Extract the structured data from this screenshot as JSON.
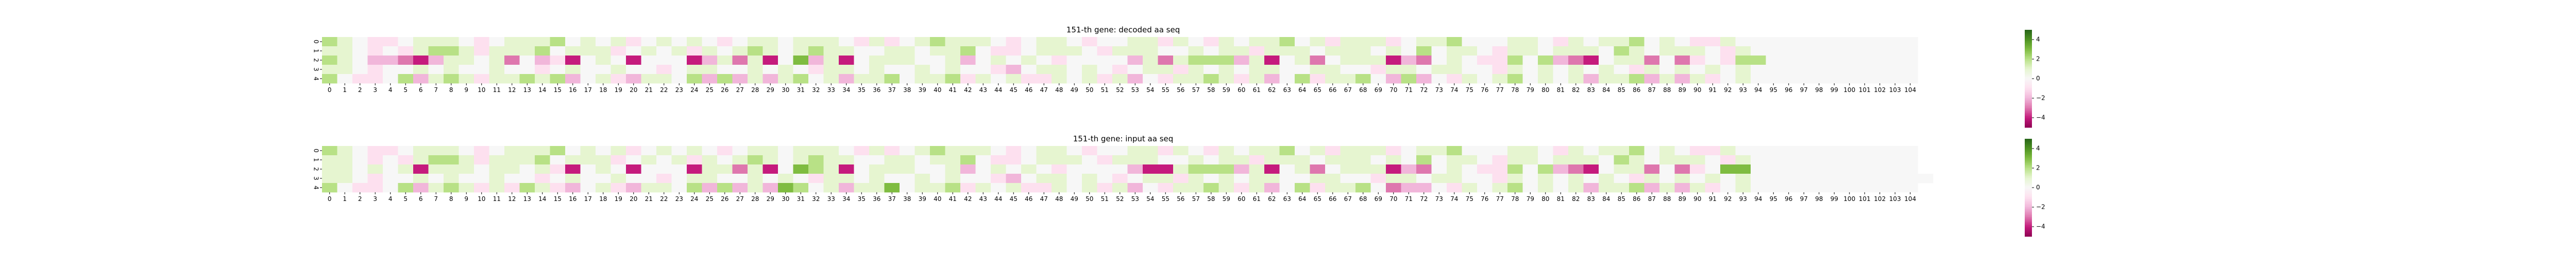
{
  "colormap": {
    "name": "PiYG",
    "min": -5,
    "max": 5,
    "stops": [
      "#8e0152",
      "#c51b7d",
      "#de77ae",
      "#f1b6da",
      "#fde0ef",
      "#f7f7f7",
      "#e6f5d0",
      "#b8e186",
      "#7fbc41",
      "#4d9221",
      "#276419"
    ]
  },
  "chart_data": [
    {
      "type": "heatmap",
      "title": "151-th gene: decoded aa seq",
      "rows": [
        "0",
        "1",
        "2",
        "3",
        "4"
      ],
      "columns": [
        "0",
        "1",
        "2",
        "3",
        "4",
        "5",
        "6",
        "7",
        "8",
        "9",
        "10",
        "11",
        "12",
        "13",
        "14",
        "15",
        "16",
        "17",
        "18",
        "19",
        "20",
        "21",
        "22",
        "23",
        "24",
        "25",
        "26",
        "27",
        "28",
        "29",
        "30",
        "31",
        "32",
        "33",
        "34",
        "35",
        "36",
        "37",
        "38",
        "39",
        "40",
        "41",
        "42",
        "43",
        "44",
        "45",
        "46",
        "47",
        "48",
        "49",
        "50",
        "51",
        "52",
        "53",
        "54",
        "55",
        "56",
        "57",
        "58",
        "59",
        "60",
        "61",
        "62",
        "63",
        "64",
        "65",
        "66",
        "67",
        "68",
        "69",
        "70",
        "71",
        "72",
        "73",
        "74",
        "75",
        "76",
        "77",
        "78",
        "79",
        "80",
        "81",
        "82",
        "83",
        "84",
        "85",
        "86",
        "87",
        "88",
        "89",
        "90",
        "91",
        "92",
        "93",
        "94",
        "95",
        "96",
        "97",
        "98",
        "99",
        "100",
        "101",
        "102",
        "103",
        "104"
      ],
      "colorbar_ticks": [
        4,
        2,
        0,
        -2,
        -4
      ],
      "values": [
        [
          2,
          1,
          0,
          -1,
          -1,
          0,
          1,
          1,
          1,
          0,
          -1,
          0,
          1,
          1,
          1,
          2,
          0,
          1,
          0,
          1,
          -1,
          0,
          1,
          0,
          1,
          0,
          -1,
          0,
          1,
          1,
          0,
          1,
          1,
          1,
          0,
          -1,
          1,
          -1,
          0,
          1,
          2,
          1,
          1,
          1,
          0,
          -1,
          0,
          1,
          1,
          0,
          -1,
          0,
          0,
          1,
          1,
          -1,
          1,
          0,
          -1,
          1,
          0,
          1,
          1,
          2,
          0,
          1,
          -1,
          1,
          1,
          1,
          -1,
          0,
          1,
          1,
          2,
          0,
          0,
          0,
          1,
          1,
          0,
          -1,
          1,
          0,
          1,
          1,
          2,
          0,
          1,
          0,
          -1,
          -1,
          1,
          0,
          0,
          0,
          0,
          0,
          0,
          0,
          0,
          0,
          0,
          0,
          0
        ],
        [
          1,
          1,
          0,
          -1,
          0,
          -1,
          1,
          2,
          2,
          1,
          -1,
          1,
          1,
          1,
          2,
          0,
          1,
          1,
          1,
          -1,
          0,
          1,
          0,
          1,
          -1,
          1,
          0,
          1,
          2,
          1,
          0,
          1,
          2,
          1,
          1,
          0,
          0,
          1,
          1,
          0,
          1,
          1,
          2,
          0,
          -1,
          -1,
          0,
          1,
          1,
          1,
          0,
          -1,
          1,
          1,
          1,
          0,
          0,
          1,
          0,
          1,
          1,
          -1,
          1,
          1,
          1,
          0,
          1,
          1,
          1,
          0,
          1,
          0,
          2,
          0,
          1,
          1,
          0,
          -1,
          1,
          1,
          0,
          1,
          1,
          1,
          0,
          2,
          1,
          0,
          1,
          1,
          1,
          0,
          -1,
          1,
          0,
          0,
          0,
          0,
          0,
          0,
          0,
          0,
          0,
          0,
          0
        ],
        [
          2,
          1,
          0,
          -2,
          -2,
          -3,
          -4,
          -2,
          1,
          1,
          0,
          1,
          -3,
          0,
          -2,
          -1,
          -4,
          0,
          1,
          0,
          -4,
          0,
          0,
          0,
          -4,
          -2,
          1,
          -3,
          1,
          -4,
          0,
          3,
          -2,
          1,
          -4,
          0,
          1,
          1,
          1,
          0,
          0,
          1,
          -2,
          0,
          1,
          0,
          1,
          0,
          -1,
          0,
          0,
          0,
          0,
          -2,
          1,
          -3,
          1,
          2,
          2,
          2,
          -2,
          1,
          -4,
          0,
          1,
          -3,
          0,
          1,
          1,
          1,
          -4,
          -2,
          -3,
          0,
          1,
          0,
          -1,
          -1,
          2,
          0,
          2,
          -2,
          -3,
          -4,
          0,
          1,
          1,
          -3,
          0,
          -3,
          -1,
          0,
          -1,
          2,
          2,
          0,
          0,
          0,
          0,
          0,
          0,
          0,
          0,
          0,
          0
        ],
        [
          1,
          1,
          0,
          -1,
          0,
          0,
          1,
          0,
          1,
          0,
          0,
          1,
          0,
          0,
          -1,
          0,
          1,
          0,
          0,
          1,
          0,
          0,
          -1,
          0,
          1,
          1,
          0,
          0,
          1,
          0,
          1,
          0,
          -1,
          1,
          1,
          0,
          1,
          0,
          0,
          1,
          0,
          1,
          0,
          0,
          -1,
          -2,
          0,
          1,
          1,
          0,
          1,
          0,
          -1,
          0,
          1,
          1,
          -1,
          1,
          0,
          1,
          0,
          1,
          1,
          0,
          0,
          1,
          1,
          0,
          0,
          -1,
          1,
          1,
          0,
          1,
          1,
          0,
          0,
          -1,
          1,
          0,
          1,
          0,
          1,
          0,
          1,
          0,
          -1,
          1,
          0,
          1,
          0,
          1,
          0,
          1,
          0,
          0,
          0,
          0,
          0,
          0,
          0,
          0,
          0,
          0,
          0
        ],
        [
          2,
          0,
          -1,
          -1,
          0,
          2,
          -2,
          1,
          2,
          1,
          -1,
          1,
          1,
          2,
          1,
          2,
          -2,
          0,
          1,
          -1,
          -2,
          1,
          1,
          0,
          2,
          -2,
          2,
          -2,
          1,
          -2,
          1,
          2,
          0,
          1,
          -2,
          1,
          1,
          2,
          0,
          1,
          1,
          2,
          -1,
          1,
          0,
          1,
          -1,
          -1,
          1,
          0,
          1,
          -1,
          1,
          -2,
          0,
          -1,
          1,
          1,
          2,
          1,
          -1,
          1,
          -2,
          0,
          2,
          -1,
          1,
          1,
          2,
          0,
          -2,
          2,
          -2,
          0,
          -1,
          1,
          0,
          1,
          2,
          0,
          1,
          0,
          1,
          -2,
          1,
          1,
          2,
          -2,
          1,
          -2,
          1,
          -1,
          0,
          1,
          0,
          0,
          0,
          0,
          0,
          0,
          0,
          0,
          0,
          0,
          0
        ]
      ]
    },
    {
      "type": "heatmap",
      "title": "151-th gene: input aa seq",
      "rows": [
        "0",
        "1",
        "2",
        "3",
        "4"
      ],
      "columns": [
        "0",
        "1",
        "2",
        "3",
        "4",
        "5",
        "6",
        "7",
        "8",
        "9",
        "10",
        "11",
        "12",
        "13",
        "14",
        "15",
        "16",
        "17",
        "18",
        "19",
        "20",
        "21",
        "22",
        "23",
        "24",
        "25",
        "26",
        "27",
        "28",
        "29",
        "30",
        "31",
        "32",
        "33",
        "34",
        "35",
        "36",
        "37",
        "38",
        "39",
        "40",
        "41",
        "42",
        "43",
        "44",
        "45",
        "46",
        "47",
        "48",
        "49",
        "50",
        "51",
        "52",
        "53",
        "54",
        "55",
        "56",
        "57",
        "58",
        "59",
        "60",
        "61",
        "62",
        "63",
        "64",
        "65",
        "66",
        "67",
        "68",
        "69",
        "70",
        "71",
        "72",
        "73",
        "74",
        "75",
        "76",
        "77",
        "78",
        "79",
        "80",
        "81",
        "82",
        "83",
        "84",
        "85",
        "86",
        "87",
        "88",
        "89",
        "90",
        "91",
        "92",
        "93",
        "94",
        "95",
        "96",
        "97",
        "98",
        "99",
        "100",
        "101",
        "102",
        "103",
        "104"
      ],
      "colorbar_ticks": [
        4,
        2,
        0,
        -2,
        -4
      ],
      "values": [
        [
          2,
          1,
          0,
          -1,
          -1,
          0,
          1,
          1,
          1,
          0,
          -1,
          0,
          1,
          1,
          1,
          2,
          0,
          1,
          0,
          1,
          -1,
          0,
          1,
          0,
          1,
          0,
          -1,
          0,
          1,
          1,
          0,
          1,
          1,
          1,
          0,
          -1,
          1,
          -1,
          0,
          1,
          2,
          1,
          1,
          1,
          0,
          -1,
          0,
          1,
          1,
          0,
          -1,
          0,
          0,
          1,
          1,
          -1,
          1,
          0,
          -1,
          1,
          0,
          1,
          1,
          2,
          0,
          1,
          -1,
          1,
          1,
          1,
          -1,
          0,
          1,
          1,
          2,
          0,
          0,
          0,
          1,
          1,
          0,
          -1,
          1,
          0,
          1,
          1,
          2,
          0,
          1,
          0,
          -1,
          -1,
          1,
          0,
          0,
          0,
          0,
          0,
          0,
          0,
          0,
          0,
          0,
          0,
          0
        ],
        [
          1,
          1,
          0,
          -1,
          0,
          -1,
          1,
          2,
          2,
          1,
          -1,
          1,
          1,
          1,
          2,
          0,
          1,
          1,
          1,
          -1,
          0,
          1,
          0,
          1,
          -1,
          1,
          0,
          1,
          2,
          1,
          0,
          1,
          2,
          1,
          1,
          0,
          0,
          1,
          1,
          0,
          1,
          1,
          2,
          0,
          -1,
          -1,
          0,
          1,
          1,
          1,
          0,
          -1,
          1,
          1,
          1,
          0,
          0,
          1,
          0,
          1,
          1,
          -1,
          1,
          1,
          1,
          0,
          1,
          1,
          1,
          0,
          1,
          0,
          2,
          0,
          1,
          1,
          0,
          -1,
          1,
          1,
          0,
          1,
          1,
          1,
          0,
          2,
          1,
          0,
          1,
          1,
          1,
          0,
          -1,
          1,
          0,
          0,
          0,
          0,
          0,
          0,
          0,
          0,
          0,
          0,
          0
        ],
        [
          1,
          1,
          0,
          1,
          0,
          1,
          -4,
          1,
          1,
          1,
          0,
          1,
          1,
          0,
          1,
          -1,
          -4,
          0,
          1,
          0,
          -4,
          0,
          0,
          0,
          -4,
          1,
          1,
          -3,
          1,
          -4,
          0,
          3,
          2,
          1,
          -4,
          0,
          1,
          1,
          1,
          0,
          0,
          1,
          -2,
          0,
          1,
          0,
          1,
          0,
          -1,
          0,
          0,
          0,
          0,
          -2,
          -4,
          -4,
          1,
          2,
          2,
          2,
          -2,
          1,
          -4,
          0,
          1,
          -3,
          0,
          1,
          1,
          1,
          -4,
          -2,
          -3,
          0,
          1,
          0,
          -1,
          -1,
          2,
          0,
          2,
          -2,
          -3,
          -4,
          0,
          1,
          1,
          -3,
          0,
          -3,
          -1,
          0,
          3,
          3,
          0,
          0,
          0,
          0,
          0,
          0,
          0,
          0,
          0,
          0,
          0
        ],
        [
          1,
          1,
          0,
          -1,
          0,
          0,
          1,
          0,
          1,
          0,
          0,
          1,
          0,
          0,
          -1,
          0,
          1,
          0,
          0,
          1,
          0,
          0,
          -1,
          0,
          1,
          1,
          0,
          0,
          1,
          0,
          1,
          0,
          -1,
          1,
          1,
          0,
          1,
          0,
          0,
          1,
          0,
          1,
          0,
          0,
          -1,
          -2,
          0,
          1,
          1,
          0,
          1,
          0,
          -1,
          0,
          1,
          1,
          -1,
          1,
          0,
          1,
          0,
          1,
          1,
          0,
          0,
          1,
          1,
          0,
          0,
          -1,
          1,
          1,
          0,
          1,
          1,
          0,
          0,
          -1,
          1,
          0,
          1,
          0,
          1,
          0,
          1,
          0,
          -1,
          1,
          0,
          1,
          0,
          1,
          0,
          1,
          0,
          0,
          0,
          0,
          0,
          0,
          0,
          0,
          0,
          0,
          0,
          0
        ],
        [
          2,
          0,
          -1,
          -1,
          0,
          2,
          -2,
          1,
          2,
          1,
          -1,
          1,
          -1,
          2,
          1,
          -1,
          -2,
          0,
          1,
          -1,
          -2,
          1,
          1,
          0,
          2,
          -2,
          2,
          -2,
          1,
          -2,
          3,
          2,
          0,
          1,
          -2,
          1,
          1,
          3,
          0,
          1,
          1,
          2,
          -1,
          1,
          0,
          1,
          -1,
          -1,
          1,
          0,
          1,
          -1,
          1,
          -2,
          0,
          -1,
          1,
          1,
          2,
          1,
          -1,
          1,
          -2,
          0,
          2,
          -1,
          1,
          1,
          2,
          0,
          -3,
          -2,
          -2,
          0,
          -1,
          1,
          0,
          1,
          2,
          0,
          1,
          0,
          1,
          -2,
          1,
          1,
          2,
          -2,
          1,
          -2,
          1,
          -1,
          0,
          1,
          0,
          0,
          0,
          0,
          0,
          0,
          0,
          0,
          0,
          0,
          0
        ]
      ]
    }
  ]
}
